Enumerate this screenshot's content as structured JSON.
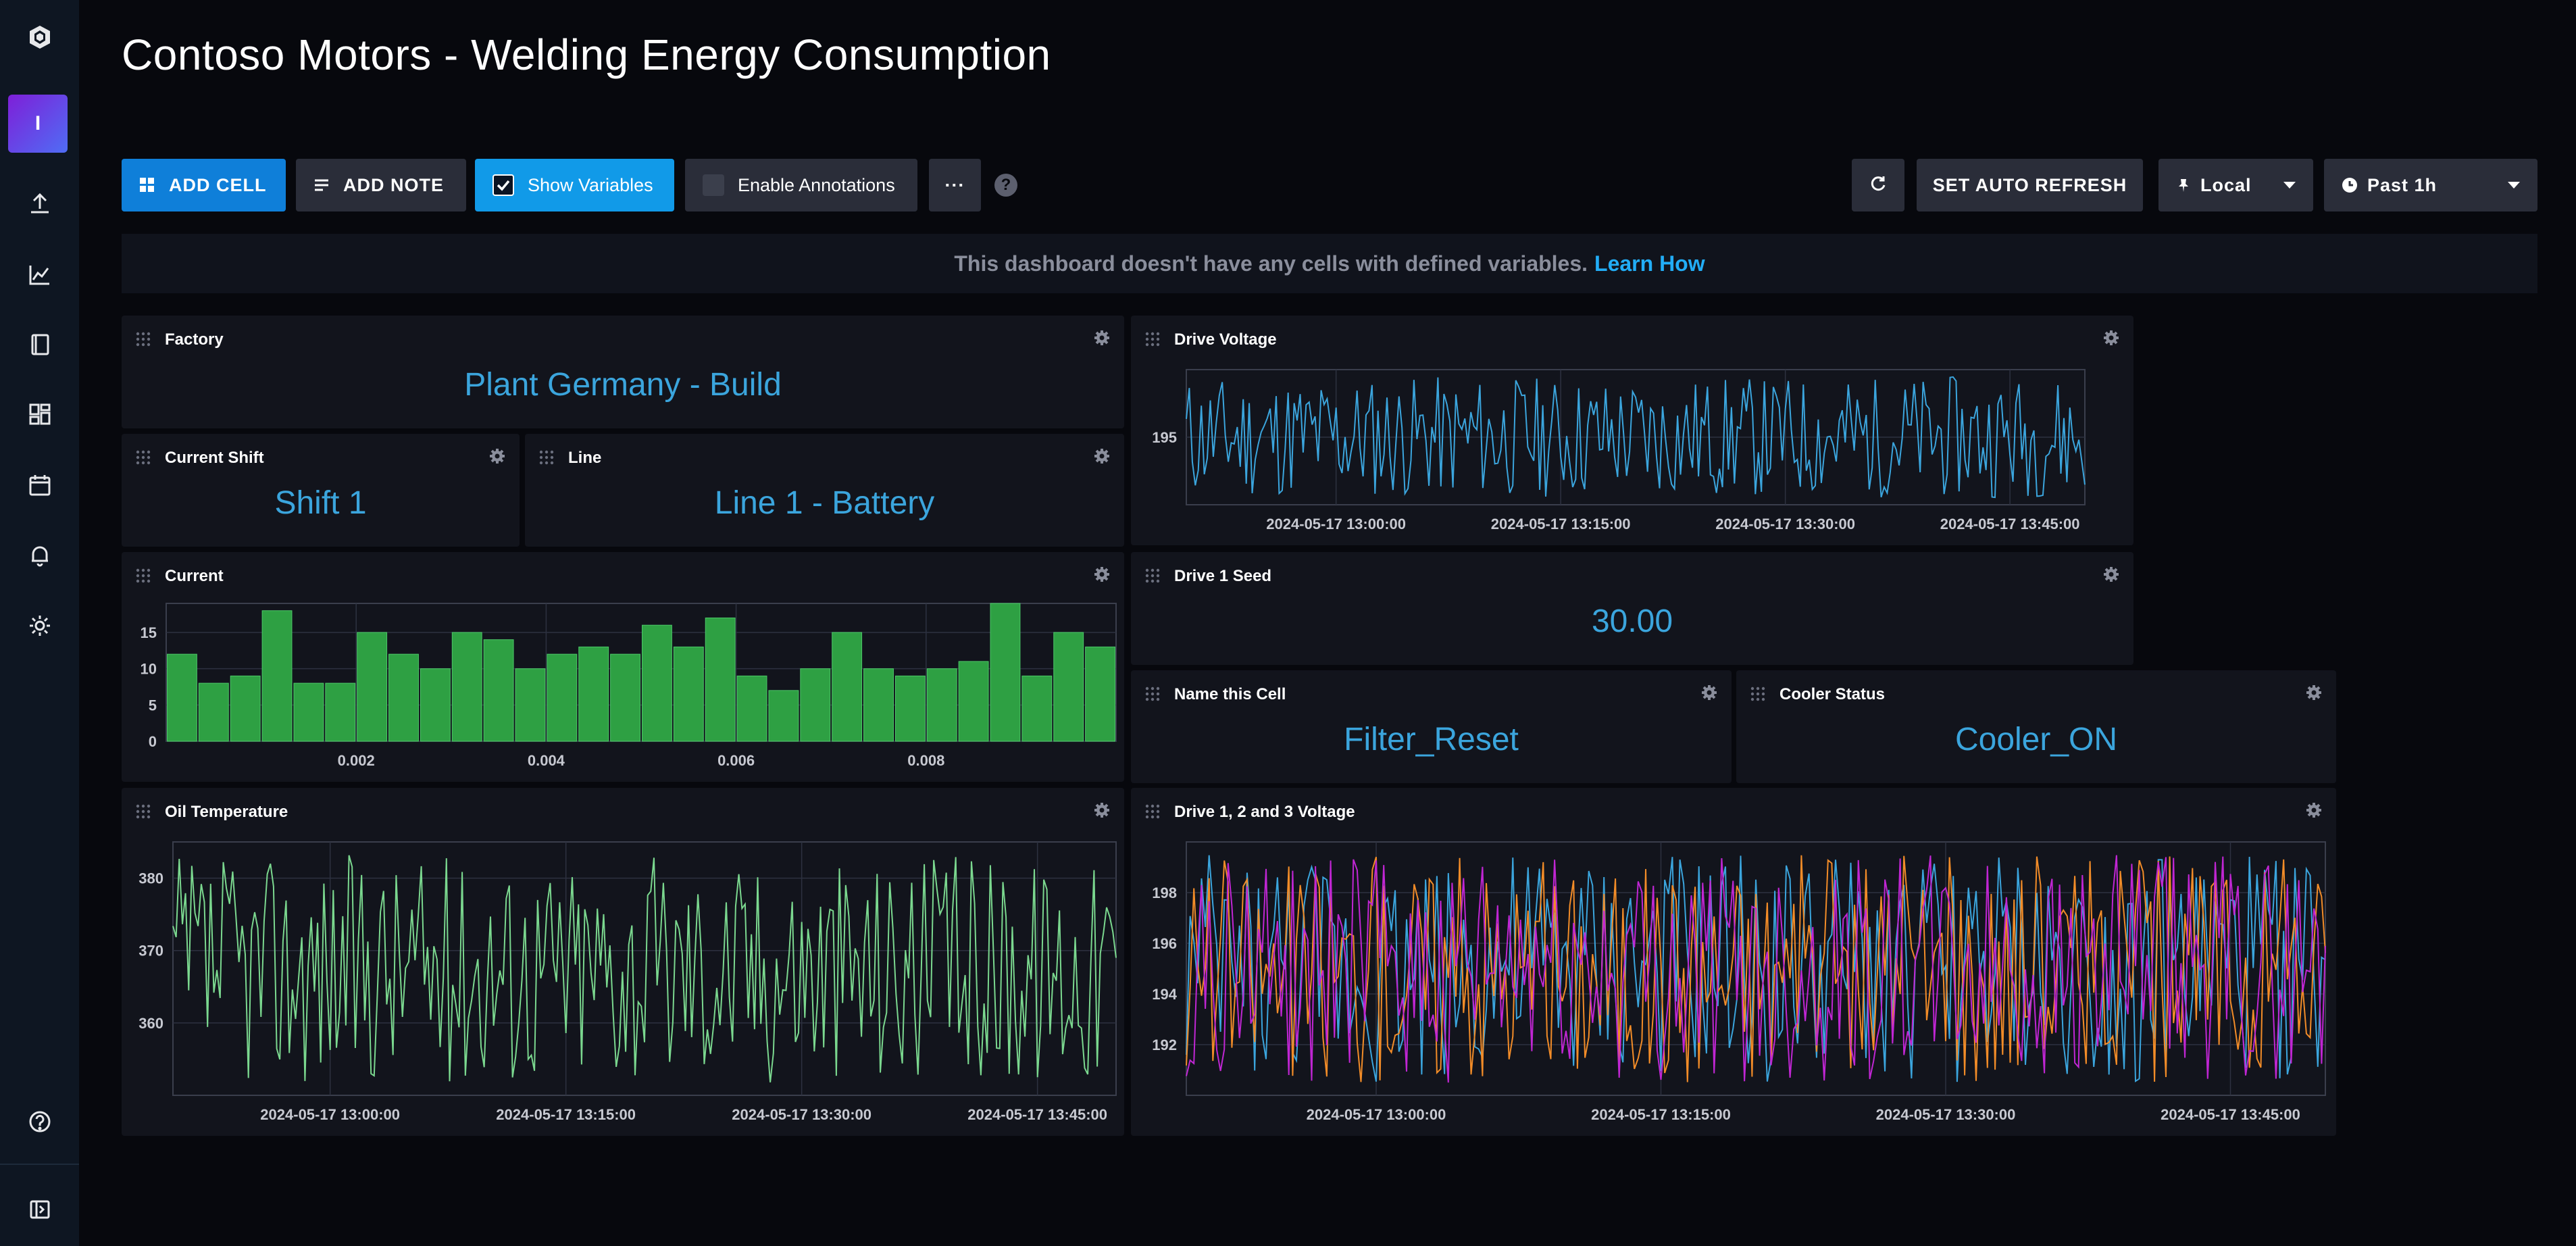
{
  "app": {
    "title": "Contoso Motors - Welding Energy Consumption",
    "user_initial": "I"
  },
  "sidebar": {
    "items": [
      {
        "name": "logo-icon"
      },
      {
        "name": "user-avatar"
      },
      {
        "name": "upload-icon"
      },
      {
        "name": "graph-icon"
      },
      {
        "name": "notebook-icon"
      },
      {
        "name": "dashboards-icon"
      },
      {
        "name": "calendar-icon"
      },
      {
        "name": "bell-icon"
      },
      {
        "name": "gear-icon"
      },
      {
        "name": "help-icon"
      },
      {
        "name": "collapse-icon"
      }
    ]
  },
  "toolbar": {
    "add_cell": "ADD CELL",
    "add_note": "ADD NOTE",
    "show_variables": "Show Variables",
    "show_variables_checked": true,
    "enable_annotations": "Enable Annotations",
    "enable_annotations_checked": false,
    "more": "···",
    "help": "?",
    "auto_refresh": "SET AUTO REFRESH",
    "timezone": "Local",
    "time_range": "Past 1h"
  },
  "notice": {
    "text": "This dashboard doesn't have any cells with defined variables.",
    "link": "Learn How"
  },
  "colors": {
    "accent": "#0f7fd9",
    "stat_text": "#3ba5dd",
    "bar_fill": "#2ea043",
    "oil_line": "#7bd88f",
    "drive_line": "#3ba5dd",
    "drive_series": [
      "#3ba5dd",
      "#f28c28",
      "#c026d3"
    ]
  },
  "cells": {
    "factory": {
      "name": "Factory",
      "value": "Plant Germany - Build"
    },
    "shift": {
      "name": "Current Shift",
      "value": "Shift 1"
    },
    "line": {
      "name": "Line",
      "value": "Line 1 - Battery"
    },
    "current": {
      "name": "Current"
    },
    "drive_voltage": {
      "name": "Drive Voltage"
    },
    "drive_seed": {
      "name": "Drive 1 Seed",
      "value": "30.00"
    },
    "name_cell": {
      "name": "Name this Cell",
      "value": "Filter_Reset"
    },
    "cooler": {
      "name": "Cooler Status",
      "value": "Cooler_ON"
    },
    "oil_temp": {
      "name": "Oil Temperature"
    },
    "drive_123": {
      "name": "Drive 1, 2 and 3 Voltage"
    }
  },
  "chart_data": [
    {
      "id": "current",
      "type": "bar",
      "title": "Current",
      "xlim": [
        0,
        0.01
      ],
      "ylim": [
        0,
        19
      ],
      "xticks": [
        "0.002",
        "0.004",
        "0.006",
        "0.008"
      ],
      "yticks": [
        "0",
        "5",
        "10",
        "15"
      ],
      "values": [
        12,
        8,
        9,
        18,
        8,
        8,
        15,
        12,
        10,
        15,
        14,
        10,
        12,
        13,
        12,
        16,
        13,
        17,
        9,
        7,
        10,
        15,
        10,
        9,
        10,
        11,
        19,
        9,
        15,
        13
      ]
    },
    {
      "id": "drive_voltage",
      "type": "line",
      "title": "Drive Voltage",
      "x_range": [
        "2024-05-17 12:50:00",
        "2024-05-17 13:50:00"
      ],
      "xticks": [
        "2024-05-17 13:00:00",
        "2024-05-17 13:15:00",
        "2024-05-17 13:30:00",
        "2024-05-17 13:45:00"
      ],
      "yticks": [
        "195"
      ],
      "ylim": [
        190,
        200
      ]
    },
    {
      "id": "oil_temp",
      "type": "line",
      "title": "Oil Temperature",
      "x_range": [
        "2024-05-17 12:50:00",
        "2024-05-17 13:50:00"
      ],
      "xticks": [
        "2024-05-17 13:00:00",
        "2024-05-17 13:15:00",
        "2024-05-17 13:30:00",
        "2024-05-17 13:45:00"
      ],
      "yticks": [
        "360",
        "370",
        "380"
      ],
      "ylim": [
        350,
        385
      ]
    },
    {
      "id": "drive_123",
      "type": "line",
      "title": "Drive 1, 2 and 3 Voltage",
      "x_range": [
        "2024-05-17 12:50:00",
        "2024-05-17 13:50:00"
      ],
      "xticks": [
        "2024-05-17 13:00:00",
        "2024-05-17 13:15:00",
        "2024-05-17 13:30:00",
        "2024-05-17 13:45:00"
      ],
      "yticks": [
        "192",
        "194",
        "196",
        "198"
      ],
      "ylim": [
        190,
        200
      ],
      "series_count": 3
    }
  ]
}
